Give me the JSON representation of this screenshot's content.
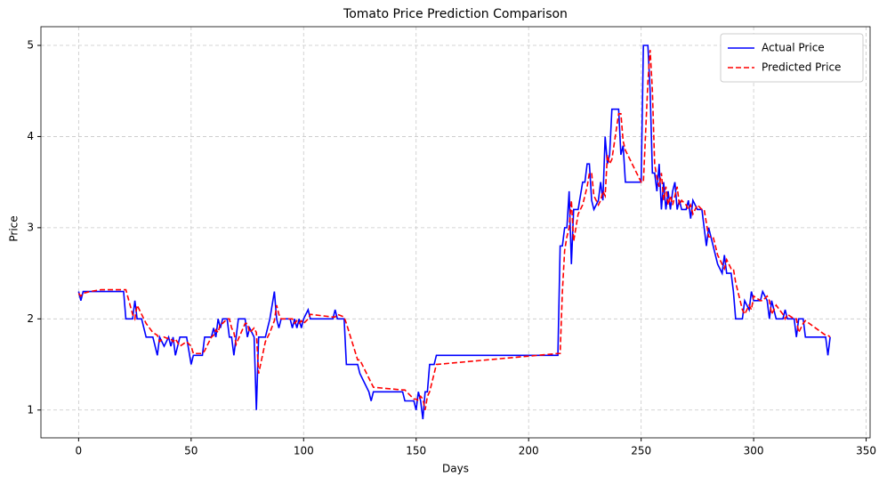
{
  "chart_data": {
    "type": "line",
    "title": "Tomato Price Prediction Comparison",
    "xlabel": "Days",
    "ylabel": "Price",
    "x": [
      0,
      1,
      2,
      5,
      10,
      15,
      20,
      21,
      24,
      25,
      26,
      28,
      30,
      33,
      35,
      36,
      38,
      40,
      41,
      42,
      43,
      45,
      48,
      50,
      51,
      55,
      56,
      59,
      60,
      61,
      62,
      63,
      64,
      66,
      67,
      68,
      69,
      70,
      71,
      74,
      75,
      76,
      78,
      79,
      80,
      83,
      85,
      87,
      88,
      89,
      90,
      94,
      95,
      96,
      97,
      98,
      99,
      100,
      102,
      103,
      113,
      114,
      115,
      118,
      119,
      124,
      125,
      127,
      129,
      130,
      131,
      144,
      145,
      149,
      150,
      151,
      152,
      153,
      154,
      155,
      156,
      158,
      159,
      213,
      214,
      215,
      216,
      217,
      218,
      219,
      220,
      222,
      224,
      225,
      226,
      227,
      228,
      229,
      231,
      232,
      233,
      234,
      235,
      236,
      237,
      240,
      241,
      242,
      243,
      250,
      251,
      253,
      254,
      255,
      256,
      257,
      258,
      259,
      260,
      261,
      262,
      263,
      264,
      265,
      266,
      267,
      268,
      270,
      271,
      272,
      273,
      275,
      277,
      278,
      279,
      280,
      282,
      284,
      286,
      287,
      288,
      290,
      291,
      292,
      295,
      296,
      298,
      299,
      300,
      303,
      304,
      306,
      307,
      308,
      310,
      313,
      314,
      315,
      318,
      319,
      320,
      322,
      323,
      332,
      333,
      334
    ],
    "series": [
      {
        "name": "Actual Price",
        "color": "#0000ff",
        "dash": "solid",
        "values": [
          2.3,
          2.2,
          2.3,
          2.3,
          2.3,
          2.3,
          2.3,
          2.0,
          2.0,
          2.2,
          2.0,
          2.0,
          1.8,
          1.8,
          1.6,
          1.8,
          1.7,
          1.8,
          1.7,
          1.8,
          1.6,
          1.8,
          1.8,
          1.5,
          1.6,
          1.6,
          1.8,
          1.8,
          1.9,
          1.8,
          2.0,
          1.9,
          2.0,
          2.0,
          1.8,
          1.8,
          1.6,
          1.8,
          2.0,
          2.0,
          1.8,
          1.9,
          1.8,
          1.0,
          1.8,
          1.8,
          2.0,
          2.3,
          2.0,
          1.9,
          2.0,
          2.0,
          1.9,
          2.0,
          1.9,
          2.0,
          1.9,
          2.0,
          2.1,
          2.0,
          2.0,
          2.1,
          2.0,
          2.0,
          1.5,
          1.5,
          1.4,
          1.3,
          1.2,
          1.1,
          1.2,
          1.2,
          1.1,
          1.1,
          1.0,
          1.2,
          1.1,
          0.9,
          1.2,
          1.2,
          1.5,
          1.5,
          1.6,
          1.6,
          2.8,
          2.8,
          3.0,
          3.0,
          3.4,
          2.6,
          3.2,
          3.2,
          3.5,
          3.5,
          3.7,
          3.7,
          3.3,
          3.2,
          3.3,
          3.5,
          3.3,
          4.0,
          3.7,
          3.8,
          4.3,
          4.3,
          3.8,
          3.9,
          3.5,
          3.5,
          5.0,
          5.0,
          4.5,
          3.6,
          3.6,
          3.4,
          3.7,
          3.2,
          3.5,
          3.2,
          3.4,
          3.2,
          3.4,
          3.5,
          3.2,
          3.3,
          3.2,
          3.2,
          3.3,
          3.1,
          3.3,
          3.2,
          3.2,
          3.0,
          2.8,
          3.0,
          2.8,
          2.6,
          2.5,
          2.7,
          2.5,
          2.5,
          2.3,
          2.0,
          2.0,
          2.2,
          2.1,
          2.3,
          2.2,
          2.2,
          2.3,
          2.2,
          2.0,
          2.2,
          2.0,
          2.0,
          2.1,
          2.0,
          2.0,
          1.8,
          2.0,
          2.0,
          1.8,
          1.8,
          1.6,
          1.8
        ]
      },
      {
        "name": "Predicted Price",
        "color": "#ff0000",
        "dash": "dashed",
        "values": [
          2.28,
          2.25,
          2.28,
          2.3,
          2.32,
          2.32,
          2.32,
          2.32,
          2.05,
          2.0,
          2.15,
          2.05,
          1.95,
          1.85,
          1.82,
          1.75,
          1.8,
          1.78,
          1.78,
          1.75,
          1.78,
          1.7,
          1.75,
          1.7,
          1.62,
          1.62,
          1.65,
          1.8,
          1.82,
          1.88,
          1.85,
          1.95,
          1.95,
          2.0,
          2.0,
          1.9,
          1.85,
          1.72,
          1.78,
          1.95,
          1.95,
          1.85,
          1.9,
          1.85,
          1.4,
          1.75,
          1.85,
          1.98,
          2.15,
          2.05,
          2.0,
          2.0,
          2.0,
          1.95,
          1.98,
          1.95,
          1.98,
          1.95,
          2.0,
          2.05,
          2.02,
          2.02,
          2.05,
          2.02,
          1.95,
          1.55,
          1.55,
          1.45,
          1.35,
          1.3,
          1.25,
          1.22,
          1.22,
          1.12,
          1.12,
          1.1,
          1.15,
          1.12,
          1.0,
          1.15,
          1.2,
          1.4,
          1.5,
          1.62,
          1.62,
          2.3,
          2.75,
          2.9,
          3.0,
          3.3,
          2.85,
          3.15,
          3.25,
          3.35,
          3.45,
          3.6,
          3.6,
          3.35,
          3.25,
          3.3,
          3.4,
          3.35,
          3.8,
          3.7,
          3.75,
          4.25,
          4.25,
          3.95,
          3.85,
          3.5,
          3.5,
          4.6,
          4.95,
          4.5,
          3.7,
          3.55,
          3.45,
          3.6,
          3.3,
          3.45,
          3.25,
          3.35,
          3.25,
          3.35,
          3.45,
          3.25,
          3.3,
          3.25,
          3.2,
          3.25,
          3.15,
          3.25,
          3.2,
          3.2,
          3.05,
          2.9,
          2.9,
          2.7,
          2.6,
          2.55,
          2.65,
          2.55,
          2.55,
          2.4,
          2.1,
          2.05,
          2.15,
          2.1,
          2.25,
          2.2,
          2.2,
          2.25,
          2.2,
          2.05,
          2.15,
          2.05,
          2.0,
          2.05,
          2.0,
          2.0,
          1.85,
          1.95,
          1.98,
          1.82,
          1.82,
          1.8
        ]
      }
    ],
    "xlim": [
      -16.75,
      351.75
    ],
    "ylim": [
      0.695,
      5.205
    ],
    "xticks": [
      0,
      50,
      100,
      150,
      200,
      250,
      300,
      350
    ],
    "yticks": [
      1,
      2,
      3,
      4,
      5
    ],
    "grid": true,
    "legend": "upper right"
  }
}
